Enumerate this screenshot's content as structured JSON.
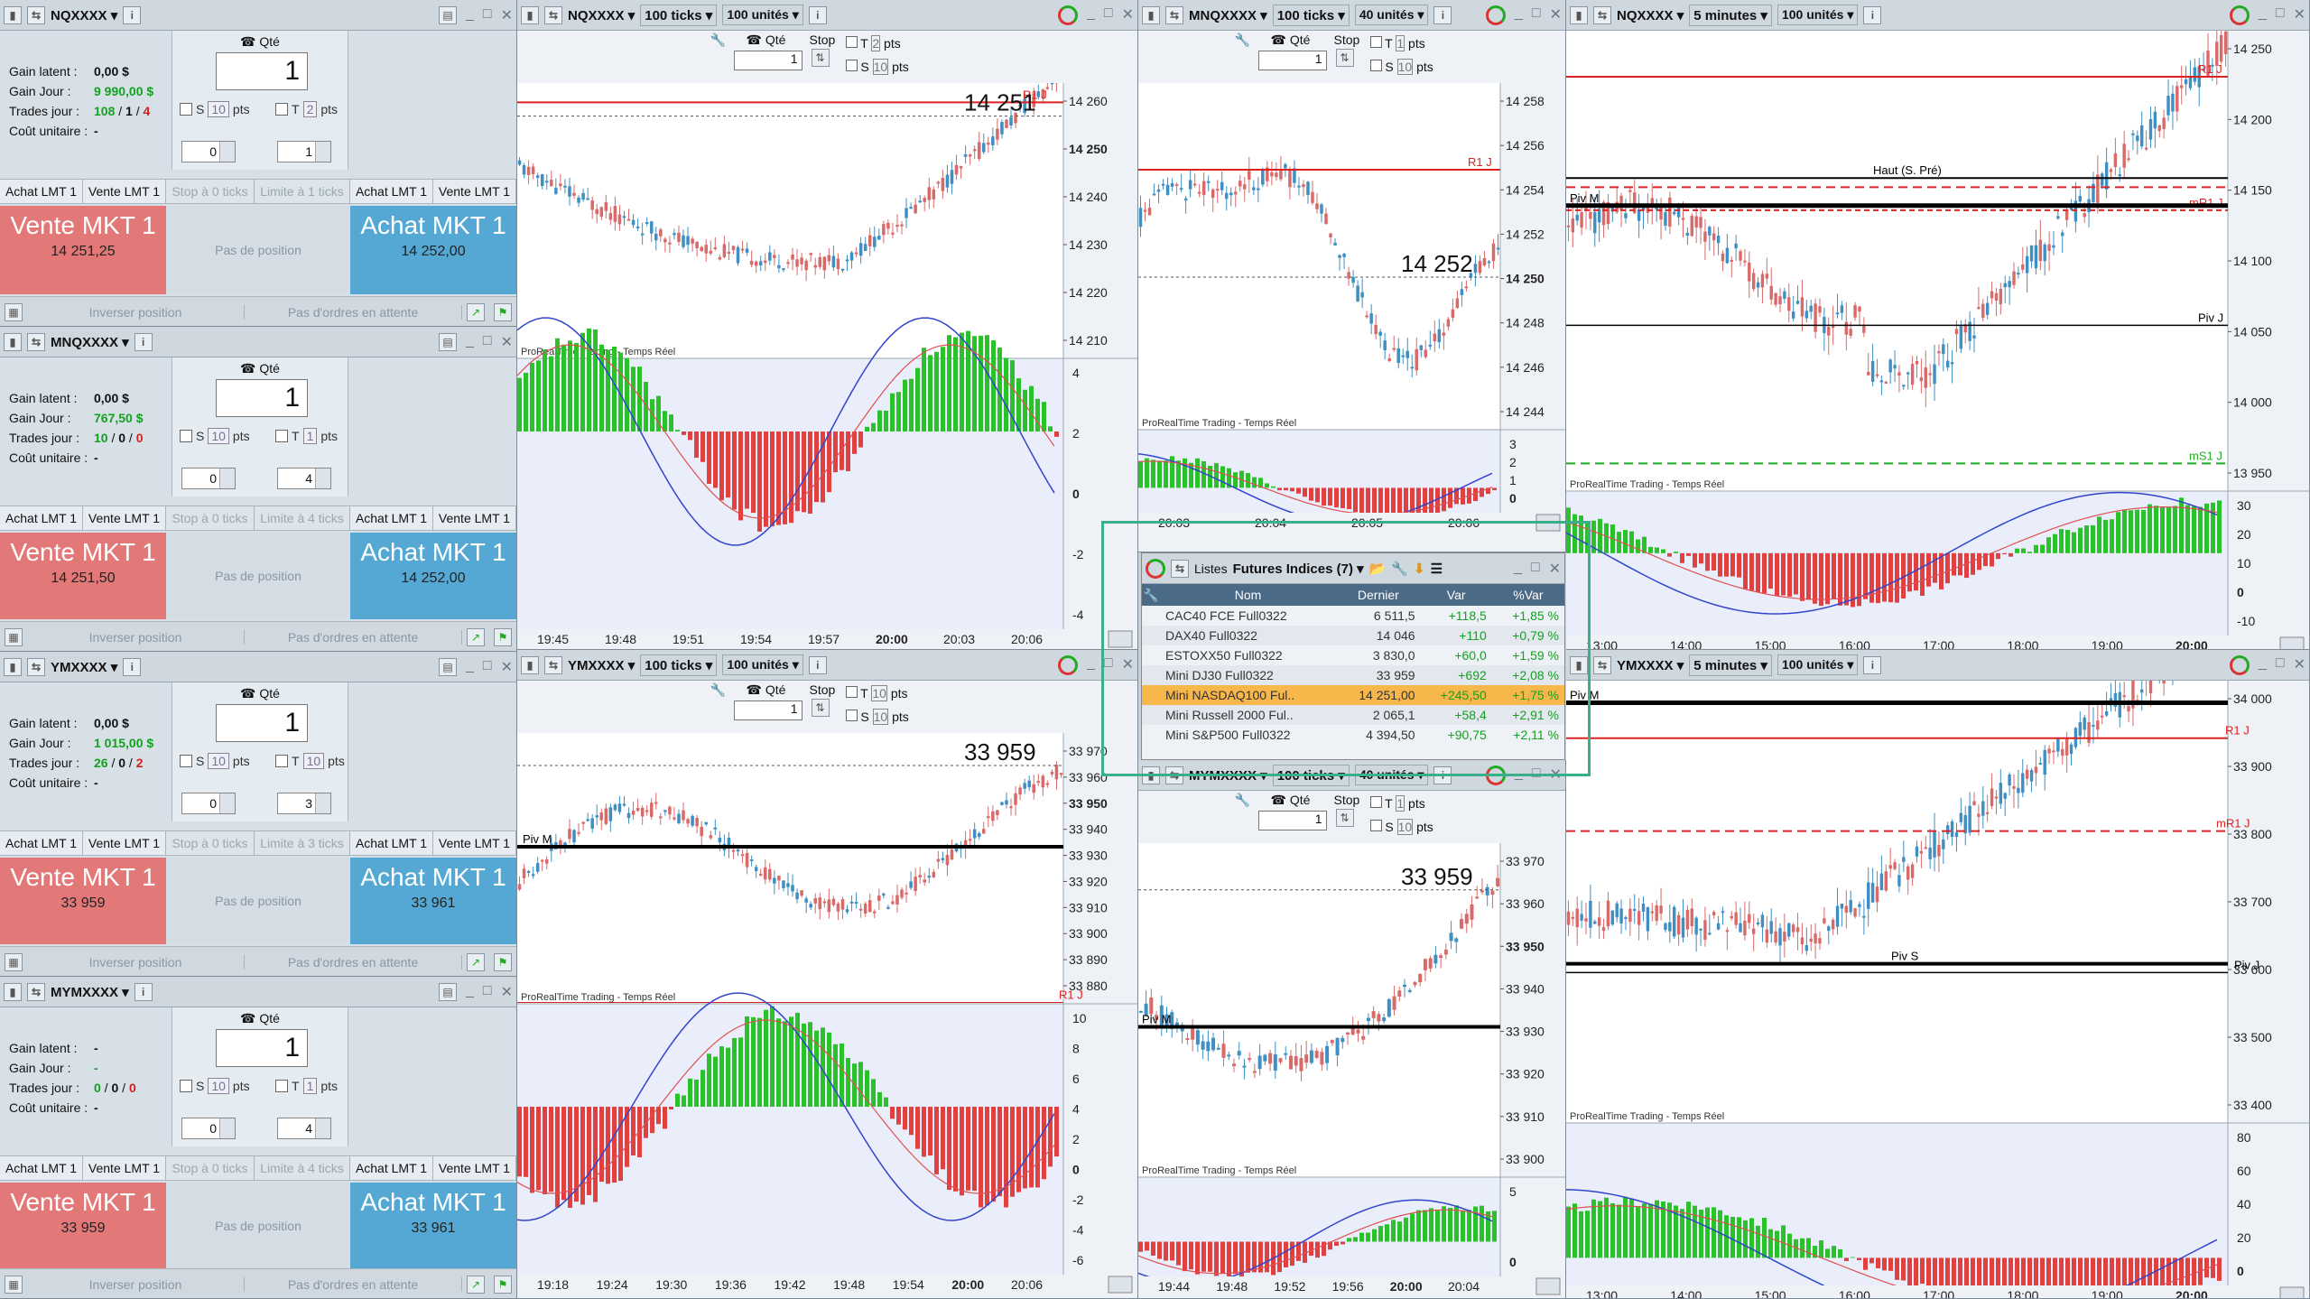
{
  "colors": {
    "sell": "#e37878",
    "buy": "#55a8d3",
    "up": "#3f8fc3",
    "down": "#d96a6a",
    "resist": "#d22",
    "hist_up": "#2bc12b",
    "hist_down": "#e04040"
  },
  "order_panels": [
    {
      "symbol": "NQXXXX",
      "qty": "1",
      "gain_latent": "0,00 $",
      "gain_jour": "9 990,00 $",
      "trades": [
        "108",
        "1",
        "4"
      ],
      "cout": "-",
      "s_pts": "10",
      "t_pts": "2",
      "spin1": "0",
      "spin2": "1",
      "ticks": "Stop à 0 ticks",
      "limit": "Limite à 1 ticks",
      "sell_price": "14 251,25",
      "buy_price": "14 252,00"
    },
    {
      "symbol": "MNQXXXX",
      "qty": "1",
      "gain_latent": "0,00 $",
      "gain_jour": "767,50 $",
      "trades": [
        "10",
        "0",
        "0"
      ],
      "cout": "-",
      "s_pts": "10",
      "t_pts": "1",
      "spin1": "0",
      "spin2": "4",
      "ticks": "Stop à 0 ticks",
      "limit": "Limite à 4 ticks",
      "sell_price": "14 251,50",
      "buy_price": "14 252,00"
    },
    {
      "symbol": "YMXXXX",
      "qty": "1",
      "gain_latent": "0,00 $",
      "gain_jour": "1 015,00 $",
      "trades": [
        "26",
        "0",
        "2"
      ],
      "cout": "-",
      "s_pts": "10",
      "t_pts": "10",
      "spin1": "0",
      "spin2": "3",
      "ticks": "Stop à 0 ticks",
      "limit": "Limite à 3 ticks",
      "sell_price": "33 959",
      "buy_price": "33 961"
    },
    {
      "symbol": "MYMXXXX",
      "qty": "1",
      "gain_latent": "-",
      "gain_jour": "-",
      "trades": [
        "0",
        "0",
        "0"
      ],
      "cout": "-",
      "s_pts": "10",
      "t_pts": "1",
      "spin1": "0",
      "spin2": "4",
      "ticks": "Stop à 0 ticks",
      "limit": "Limite à 4 ticks",
      "sell_price": "33 959",
      "buy_price": "33 961"
    }
  ],
  "labels": {
    "qte": "Qté",
    "gain_latent": "Gain latent :",
    "gain_jour": "Gain Jour :",
    "trades": "Trades jour :",
    "cout": "Coût unitaire :",
    "s": "S",
    "t": "T",
    "pts": "pts",
    "achat_lmt": "Achat LMT 1",
    "vente_lmt": "Vente LMT 1",
    "vente_mkt": "Vente MKT 1",
    "achat_mkt": "Achat MKT 1",
    "pas_position": "Pas de position",
    "inverser": "Inverser position",
    "pas_ordres": "Pas d'ordres en attente",
    "stop": "Stop",
    "source": "ProRealTime Trading - Temps Réel"
  },
  "charts": [
    {
      "id": "c1",
      "symbol": "NQXXXX",
      "period": "100 ticks",
      "units": "100 unités",
      "qty": "1",
      "t_pts": "2",
      "s_pts": "10",
      "last": "14 251",
      "last_axis": "14 250",
      "y_ticks": [
        "14 260",
        "14 250",
        "14 240",
        "14 230",
        "14 220",
        "14 210"
      ],
      "x_ticks": [
        "19:45",
        "19:48",
        "19:51",
        "19:54",
        "19:57",
        "20:00",
        "20:03",
        "20:06"
      ],
      "osc_ticks": [
        "4",
        "2",
        "0",
        "-2",
        "-4"
      ],
      "levels": [
        {
          "label": "R1 J",
          "type": "red"
        }
      ]
    },
    {
      "id": "c2",
      "symbol": "MNQXXXX",
      "period": "100 ticks",
      "units": "40 unités",
      "qty": "1",
      "t_pts": "1",
      "s_pts": "10",
      "last": "14 252",
      "last_axis": "14 250",
      "y_ticks": [
        "14 258",
        "14 256",
        "14 254",
        "14 252",
        "14 250",
        "14 248",
        "14 246",
        "14 244"
      ],
      "x_ticks": [
        "20:03",
        "20:04",
        "20:05",
        "20:06"
      ],
      "osc_ticks": [
        "3",
        "2",
        "1",
        "0"
      ],
      "levels": [
        {
          "label": "R1 J",
          "type": "red"
        }
      ]
    },
    {
      "id": "c3",
      "symbol": "NQXXXX",
      "period": "5 minutes",
      "units": "100 unités",
      "y_ticks": [
        "14 250",
        "14 200",
        "14 150",
        "14 100",
        "14 050",
        "14 000",
        "13 950"
      ],
      "x_ticks": [
        "13:00",
        "14:00",
        "15:00",
        "16:00",
        "17:00",
        "18:00",
        "19:00",
        "20:00"
      ],
      "osc_ticks": [
        "30",
        "20",
        "10",
        "0",
        "-10"
      ],
      "levels": [
        {
          "label": "R1 J"
        },
        {
          "label": "Haut (S. Pré)"
        },
        {
          "label": "mR1 J"
        },
        {
          "label": "Piv M"
        },
        {
          "label": "Piv J"
        },
        {
          "label": "mS1 J"
        }
      ]
    },
    {
      "id": "c4",
      "symbol": "YMXXXX",
      "period": "100 ticks",
      "units": "100 unités",
      "qty": "1",
      "t_pts": "10",
      "s_pts": "10",
      "last": "33 959",
      "last_axis": "33 950",
      "y_ticks": [
        "33 970",
        "33 960",
        "33 950",
        "33 940",
        "33 930",
        "33 920",
        "33 910",
        "33 900",
        "33 890",
        "33 880"
      ],
      "x_ticks": [
        "19:18",
        "19:24",
        "19:30",
        "19:36",
        "19:42",
        "19:48",
        "19:54",
        "20:00",
        "20:06"
      ],
      "osc_ticks": [
        "10",
        "8",
        "6",
        "4",
        "2",
        "0",
        "-2",
        "-4",
        "-6"
      ],
      "levels": [
        {
          "label": "Piv M"
        },
        {
          "label": "R1 J"
        }
      ]
    },
    {
      "id": "c5",
      "symbol": "MYMXXXX",
      "period": "100 ticks",
      "units": "40 unités",
      "qty": "1",
      "t_pts": "1",
      "s_pts": "10",
      "last": "33 959",
      "last_axis": "33 950",
      "y_ticks": [
        "33 970",
        "33 960",
        "33 950",
        "33 940",
        "33 930",
        "33 920",
        "33 910",
        "33 900"
      ],
      "x_ticks": [
        "19:44",
        "19:48",
        "19:52",
        "19:56",
        "20:00",
        "20:04"
      ],
      "osc_ticks": [
        "5",
        "0"
      ],
      "levels": [
        {
          "label": "Piv M"
        }
      ]
    },
    {
      "id": "c6",
      "symbol": "YMXXXX",
      "period": "5 minutes",
      "units": "100 unités",
      "y_ticks": [
        "34 000",
        "33 900",
        "33 800",
        "33 700",
        "33 600",
        "33 500",
        "33 400"
      ],
      "x_ticks": [
        "13:00",
        "14:00",
        "15:00",
        "16:00",
        "17:00",
        "18:00",
        "19:00",
        "20:00"
      ],
      "osc_ticks": [
        "80",
        "60",
        "40",
        "20",
        "0"
      ],
      "levels": [
        {
          "label": "Piv M"
        },
        {
          "label": "R1 J"
        },
        {
          "label": "mR1 J"
        },
        {
          "label": "Piv S"
        },
        {
          "label": "Piv J"
        }
      ]
    }
  ],
  "lists": {
    "title": "Listes",
    "name": "Futures Indices (7)",
    "headers": [
      "Nom",
      "Dernier",
      "Var",
      "%Var"
    ],
    "rows": [
      [
        "CAC40 FCE Full0322",
        "6 511,5",
        "+118,5",
        "+1,85 %"
      ],
      [
        "DAX40 Full0322",
        "14 046",
        "+110",
        "+0,79 %"
      ],
      [
        "ESTOXX50 Full0322",
        "3 830,0",
        "+60,0",
        "+1,59 %"
      ],
      [
        "Mini DJ30 Full0322",
        "33 959",
        "+692",
        "+2,08 %"
      ],
      [
        "Mini NASDAQ100 Ful..",
        "14 251,00",
        "+245,50",
        "+1,75 %"
      ],
      [
        "Mini Russell 2000 Ful..",
        "2 065,1",
        "+58,4",
        "+2,91 %"
      ],
      [
        "Mini S&P500 Full0322",
        "4 394,50",
        "+90,75",
        "+2,11 %"
      ]
    ]
  }
}
